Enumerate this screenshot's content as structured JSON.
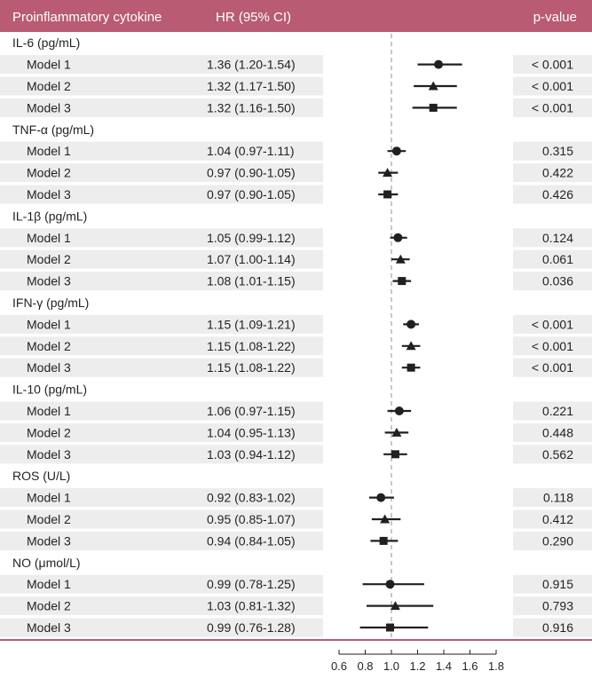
{
  "header": {
    "col_cytokine": "Proinflammatory cytokine",
    "col_hr": "HR (95% CI)",
    "col_p": "p-value"
  },
  "colors": {
    "header_bg": "#b85b73",
    "stripe_bg": "#ededed",
    "marker": "#231f20",
    "reference_line": "#bbbbbb"
  },
  "chart_data": {
    "type": "forest",
    "reference_value": 1.0,
    "xlim": [
      0.6,
      1.8
    ],
    "xticks": [
      "0.6",
      "0.8",
      "1.0",
      "1.2",
      "1.4",
      "1.6",
      "1.8"
    ],
    "xtick_values": [
      0.6,
      0.8,
      1.0,
      1.2,
      1.4,
      1.6,
      1.8
    ],
    "marker_shapes": {
      "Model 1": "circle",
      "Model 2": "triangle",
      "Model 3": "square"
    },
    "groups": [
      {
        "label": "IL-6 (pg/mL)",
        "rows": [
          {
            "model": "Model 1",
            "hr_text": "1.36 (1.20-1.54)",
            "hr": 1.36,
            "lo": 1.2,
            "hi": 1.54,
            "p": "< 0.001"
          },
          {
            "model": "Model 2",
            "hr_text": "1.32 (1.17-1.50)",
            "hr": 1.32,
            "lo": 1.17,
            "hi": 1.5,
            "p": "< 0.001"
          },
          {
            "model": "Model 3",
            "hr_text": "1.32 (1.16-1.50)",
            "hr": 1.32,
            "lo": 1.16,
            "hi": 1.5,
            "p": "< 0.001"
          }
        ]
      },
      {
        "label": "TNF-α (pg/mL)",
        "rows": [
          {
            "model": "Model 1",
            "hr_text": "1.04 (0.97-1.11)",
            "hr": 1.04,
            "lo": 0.97,
            "hi": 1.11,
            "p": "0.315"
          },
          {
            "model": "Model 2",
            "hr_text": "0.97 (0.90-1.05)",
            "hr": 0.97,
            "lo": 0.9,
            "hi": 1.05,
            "p": "0.422"
          },
          {
            "model": "Model 3",
            "hr_text": "0.97 (0.90-1.05)",
            "hr": 0.97,
            "lo": 0.9,
            "hi": 1.05,
            "p": "0.426"
          }
        ]
      },
      {
        "label": "IL-1β (pg/mL)",
        "rows": [
          {
            "model": "Model 1",
            "hr_text": "1.05 (0.99-1.12)",
            "hr": 1.05,
            "lo": 0.99,
            "hi": 1.12,
            "p": "0.124"
          },
          {
            "model": "Model 2",
            "hr_text": "1.07 (1.00-1.14)",
            "hr": 1.07,
            "lo": 1.0,
            "hi": 1.14,
            "p": "0.061"
          },
          {
            "model": "Model 3",
            "hr_text": "1.08 (1.01-1.15)",
            "hr": 1.08,
            "lo": 1.01,
            "hi": 1.15,
            "p": "0.036"
          }
        ]
      },
      {
        "label": "IFN-γ (pg/mL)",
        "rows": [
          {
            "model": "Model 1",
            "hr_text": "1.15 (1.09-1.21)",
            "hr": 1.15,
            "lo": 1.09,
            "hi": 1.21,
            "p": "< 0.001"
          },
          {
            "model": "Model 2",
            "hr_text": "1.15 (1.08-1.22)",
            "hr": 1.15,
            "lo": 1.08,
            "hi": 1.22,
            "p": "< 0.001"
          },
          {
            "model": "Model 3",
            "hr_text": "1.15 (1.08-1.22)",
            "hr": 1.15,
            "lo": 1.08,
            "hi": 1.22,
            "p": "< 0.001"
          }
        ]
      },
      {
        "label": "IL-10 (pg/mL)",
        "rows": [
          {
            "model": "Model 1",
            "hr_text": "1.06 (0.97-1.15)",
            "hr": 1.06,
            "lo": 0.97,
            "hi": 1.15,
            "p": "0.221"
          },
          {
            "model": "Model 2",
            "hr_text": "1.04 (0.95-1.13)",
            "hr": 1.04,
            "lo": 0.95,
            "hi": 1.13,
            "p": "0.448"
          },
          {
            "model": "Model 3",
            "hr_text": "1.03 (0.94-1.12)",
            "hr": 1.03,
            "lo": 0.94,
            "hi": 1.12,
            "p": "0.562"
          }
        ]
      },
      {
        "label": "ROS (U/L)",
        "rows": [
          {
            "model": "Model 1",
            "hr_text": "0.92 (0.83-1.02)",
            "hr": 0.92,
            "lo": 0.83,
            "hi": 1.02,
            "p": "0.118"
          },
          {
            "model": "Model 2",
            "hr_text": "0.95 (0.85-1.07)",
            "hr": 0.95,
            "lo": 0.85,
            "hi": 1.07,
            "p": "0.412"
          },
          {
            "model": "Model 3",
            "hr_text": "0.94 (0.84-1.05)",
            "hr": 0.94,
            "lo": 0.84,
            "hi": 1.05,
            "p": "0.290"
          }
        ]
      },
      {
        "label": "NO (μmol/L)",
        "rows": [
          {
            "model": "Model 1",
            "hr_text": "0.99 (0.78-1.25)",
            "hr": 0.99,
            "lo": 0.78,
            "hi": 1.25,
            "p": "0.915"
          },
          {
            "model": "Model 2",
            "hr_text": "1.03 (0.81-1.32)",
            "hr": 1.03,
            "lo": 0.81,
            "hi": 1.32,
            "p": "0.793"
          },
          {
            "model": "Model 3",
            "hr_text": "0.99 (0.76-1.28)",
            "hr": 0.99,
            "lo": 0.76,
            "hi": 1.28,
            "p": "0.916"
          }
        ]
      }
    ]
  }
}
